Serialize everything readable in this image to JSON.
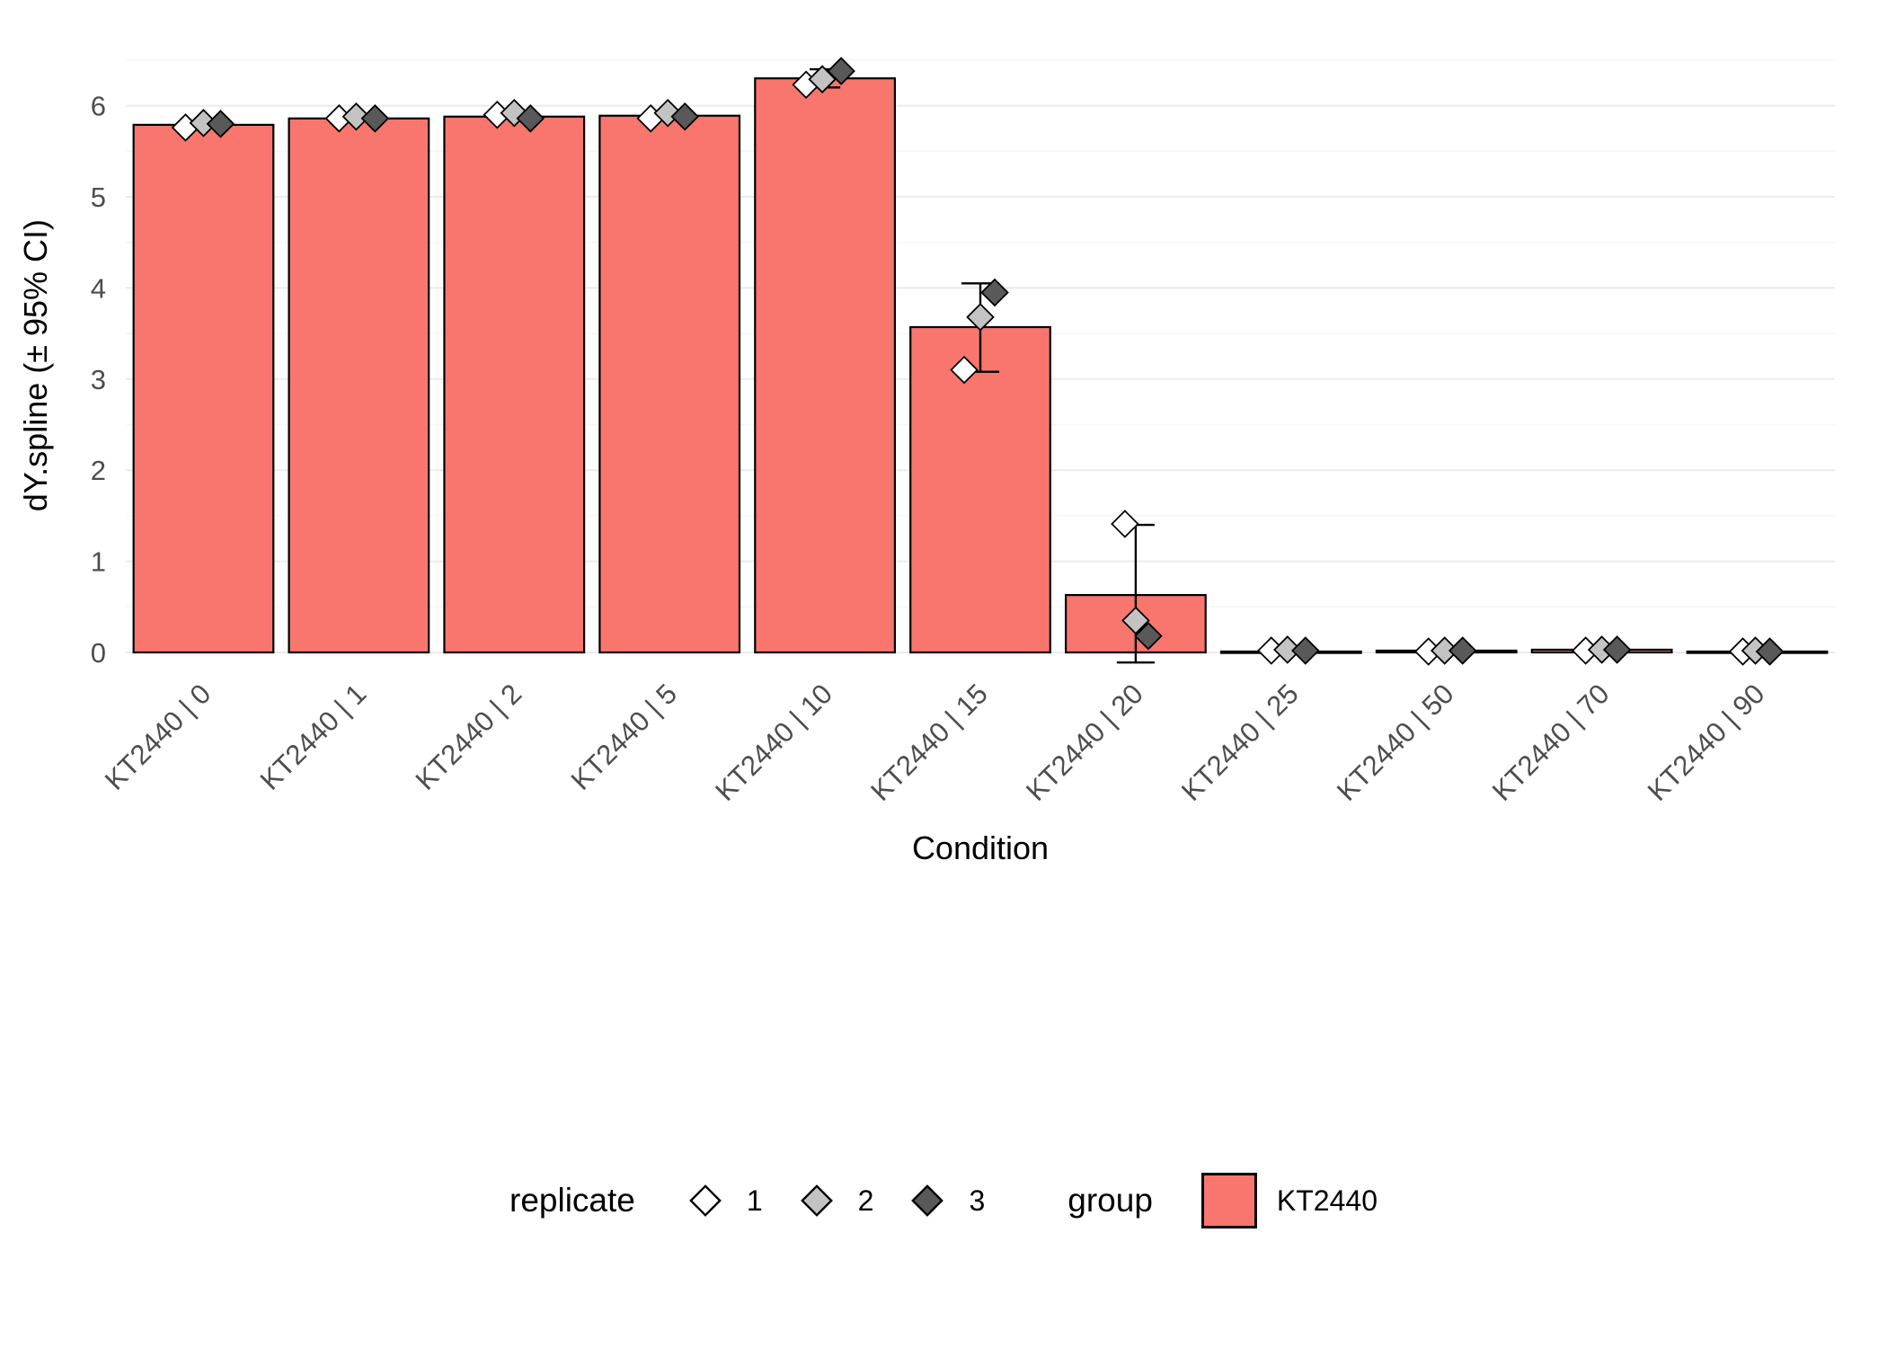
{
  "colors": {
    "background": "#FFFFFF",
    "bar_fill": "#F8766D",
    "bar_stroke": "#000000",
    "grid_major": "#EBEBEB",
    "grid_minor": "#F6F6F6",
    "axis_text": "#4D4D4D",
    "axis_title": "#000000",
    "errorbar": "#000000",
    "replicate_fills": [
      "#FFFFFF",
      "#C3C3C3",
      "#595959"
    ]
  },
  "chart_data": {
    "type": "bar",
    "title": "",
    "xlabel": "Condition",
    "ylabel": "dY.spline (± 95% CI)",
    "ylim": [
      -0.4,
      6.6
    ],
    "yticks": [
      0,
      1,
      2,
      3,
      4,
      5,
      6
    ],
    "grid": true,
    "legend_position": "bottom",
    "categories": [
      "KT2440 | 0",
      "KT2440 | 1",
      "KT2440 | 2",
      "KT2440 | 5",
      "KT2440 | 10",
      "KT2440 | 15",
      "KT2440 | 20",
      "KT2440 | 25",
      "KT2440 | 50",
      "KT2440 | 70",
      "KT2440 | 90"
    ],
    "bars": [
      5.79,
      5.86,
      5.88,
      5.89,
      6.3,
      3.57,
      0.63,
      0.01,
      0.02,
      0.03,
      0.01
    ],
    "error_bars": [
      null,
      null,
      null,
      null,
      {
        "lo": 6.2,
        "hi": 6.4,
        "cap": 34
      },
      {
        "lo": 3.08,
        "hi": 4.05,
        "cap": 42
      },
      {
        "lo": -0.11,
        "hi": 1.4,
        "cap": 42
      },
      null,
      null,
      null,
      null
    ],
    "points": [
      [
        {
          "r": 1,
          "v": 5.76,
          "dx": -20
        },
        {
          "r": 2,
          "v": 5.81,
          "dx": 0
        },
        {
          "r": 3,
          "v": 5.8,
          "dx": 19
        }
      ],
      [
        {
          "r": 1,
          "v": 5.86,
          "dx": -22
        },
        {
          "r": 2,
          "v": 5.88,
          "dx": -3
        },
        {
          "r": 3,
          "v": 5.86,
          "dx": 18
        }
      ],
      [
        {
          "r": 1,
          "v": 5.9,
          "dx": -19
        },
        {
          "r": 2,
          "v": 5.92,
          "dx": 0
        },
        {
          "r": 3,
          "v": 5.86,
          "dx": 18
        }
      ],
      [
        {
          "r": 1,
          "v": 5.86,
          "dx": -21
        },
        {
          "r": 2,
          "v": 5.92,
          "dx": -2
        },
        {
          "r": 3,
          "v": 5.88,
          "dx": 17
        }
      ],
      [
        {
          "r": 1,
          "v": 6.23,
          "dx": -21
        },
        {
          "r": 2,
          "v": 6.29,
          "dx": -3
        },
        {
          "r": 3,
          "v": 6.38,
          "dx": 18
        }
      ],
      [
        {
          "r": 1,
          "v": 3.1,
          "dx": -18
        },
        {
          "r": 2,
          "v": 3.68,
          "dx": 0
        },
        {
          "r": 3,
          "v": 3.95,
          "dx": 16
        }
      ],
      [
        {
          "r": 1,
          "v": 1.41,
          "dx": -12
        },
        {
          "r": 2,
          "v": 0.35,
          "dx": 0
        },
        {
          "r": 3,
          "v": 0.18,
          "dx": 14
        }
      ],
      [
        {
          "r": 1,
          "v": 0.02,
          "dx": -22
        },
        {
          "r": 2,
          "v": 0.03,
          "dx": -4
        },
        {
          "r": 3,
          "v": 0.02,
          "dx": 16
        }
      ],
      [
        {
          "r": 1,
          "v": 0.01,
          "dx": -20
        },
        {
          "r": 2,
          "v": 0.02,
          "dx": -2
        },
        {
          "r": 3,
          "v": 0.02,
          "dx": 18
        }
      ],
      [
        {
          "r": 1,
          "v": 0.02,
          "dx": -18
        },
        {
          "r": 2,
          "v": 0.03,
          "dx": 0
        },
        {
          "r": 3,
          "v": 0.03,
          "dx": 17
        }
      ],
      [
        {
          "r": 1,
          "v": 0.01,
          "dx": -16
        },
        {
          "r": 2,
          "v": 0.02,
          "dx": -2
        },
        {
          "r": 3,
          "v": 0.01,
          "dx": 14
        }
      ]
    ]
  },
  "legend": {
    "replicate_title": "replicate",
    "replicates": [
      {
        "label": "1"
      },
      {
        "label": "2"
      },
      {
        "label": "3"
      }
    ],
    "group_title": "group",
    "group_label": "KT2440"
  }
}
